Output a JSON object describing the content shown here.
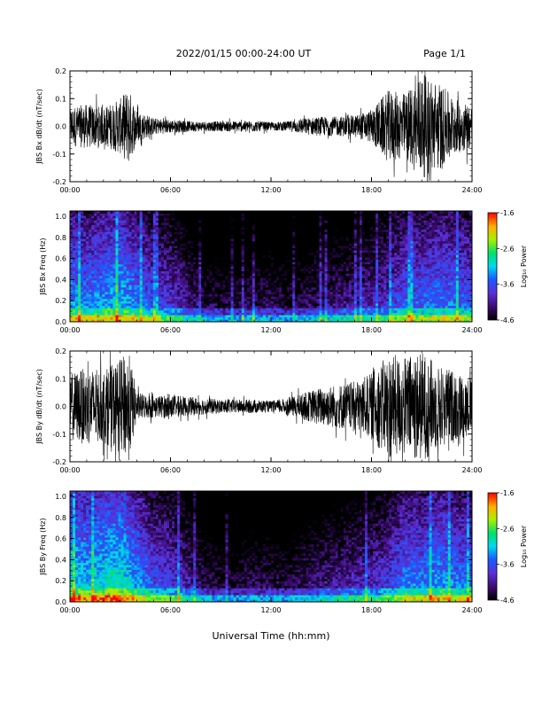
{
  "header": {
    "title": "2022/01/15  00:00-24:00 UT",
    "page": "Page 1/1"
  },
  "chart_data": [
    {
      "id": "bx-wave",
      "type": "line",
      "title": "",
      "xlabel": "",
      "ylabel": "JBS Bx dB/dt (nT/sec)",
      "xlim": [
        0,
        24
      ],
      "ylim": [
        -0.2,
        0.2
      ],
      "x_ticks": [
        "00:00",
        "06:00",
        "12:00",
        "18:00",
        "24:00"
      ],
      "y_ticks": [
        "-0.2",
        "-0.1",
        "0.0",
        "0.1",
        "0.2"
      ],
      "series": [
        {
          "x": [
            0,
            1,
            2,
            3,
            3.5,
            4,
            5,
            6,
            7,
            8,
            9,
            10,
            11,
            12,
            13,
            14,
            15,
            16,
            17,
            18,
            19,
            20,
            21,
            22,
            23,
            24
          ],
          "amplitude": [
            0.07,
            0.08,
            0.07,
            0.1,
            0.14,
            0.06,
            0.03,
            0.025,
            0.02,
            0.018,
            0.018,
            0.02,
            0.02,
            0.015,
            0.018,
            0.03,
            0.035,
            0.035,
            0.04,
            0.06,
            0.13,
            0.12,
            0.19,
            0.16,
            0.1,
            0.08
          ]
        }
      ]
    },
    {
      "id": "bx-spec",
      "type": "heatmap",
      "title": "",
      "xlabel": "",
      "ylabel": "JBS Bx Freq (Hz)",
      "xlim": [
        0,
        24
      ],
      "ylim": [
        0,
        1.05
      ],
      "x_ticks": [
        "00:00",
        "06:00",
        "12:00",
        "18:00",
        "24:00"
      ],
      "y_ticks": [
        "0.0",
        "0.2",
        "0.4",
        "0.6",
        "0.8",
        "1.0"
      ],
      "colorbar": {
        "label": "Log₁₀ Power",
        "range": [
          -4.6,
          -1.6
        ],
        "ticks": [
          "-1.6",
          "-2.6",
          "-3.6",
          "-4.6"
        ]
      },
      "activity_profile": [
        0.55,
        0.5,
        0.55,
        0.6,
        0.5,
        0.4,
        0.35,
        0.25,
        0.15,
        0.12,
        0.12,
        0.15,
        0.15,
        0.12,
        0.15,
        0.2,
        0.22,
        0.25,
        0.28,
        0.35,
        0.45,
        0.45,
        0.5,
        0.48,
        0.45
      ]
    },
    {
      "id": "by-wave",
      "type": "line",
      "title": "",
      "xlabel": "",
      "ylabel": "JBS By dB/dt (nT/sec)",
      "xlim": [
        0,
        24
      ],
      "ylim": [
        -0.2,
        0.2
      ],
      "x_ticks": [
        "00:00",
        "06:00",
        "12:00",
        "18:00",
        "24:00"
      ],
      "y_ticks": [
        "-0.2",
        "-0.1",
        "0.0",
        "0.1",
        "0.2"
      ],
      "series": [
        {
          "x": [
            0,
            1,
            2,
            3,
            3.5,
            4,
            5,
            6,
            7,
            8,
            9,
            10,
            11,
            12,
            13,
            14,
            15,
            16,
            17,
            18,
            19,
            20,
            21,
            22,
            23,
            24
          ],
          "amplitude": [
            0.12,
            0.14,
            0.13,
            0.17,
            0.2,
            0.05,
            0.04,
            0.04,
            0.035,
            0.03,
            0.025,
            0.025,
            0.025,
            0.02,
            0.03,
            0.05,
            0.07,
            0.08,
            0.09,
            0.12,
            0.19,
            0.18,
            0.2,
            0.15,
            0.13,
            0.1
          ]
        }
      ]
    },
    {
      "id": "by-spec",
      "type": "heatmap",
      "title": "",
      "xlabel": "Universal Time (hh:mm)",
      "ylabel": "JBS By Freq (Hz)",
      "xlim": [
        0,
        24
      ],
      "ylim": [
        0,
        1.05
      ],
      "x_ticks": [
        "00:00",
        "06:00",
        "12:00",
        "18:00",
        "24:00"
      ],
      "y_ticks": [
        "0.0",
        "0.2",
        "0.4",
        "0.6",
        "0.8",
        "1.0"
      ],
      "colorbar": {
        "label": "Log₁₀ Power",
        "range": [
          -4.6,
          -1.6
        ],
        "ticks": [
          "-1.6",
          "-2.6",
          "-3.6",
          "-4.6"
        ]
      },
      "activity_profile": [
        0.65,
        0.6,
        0.65,
        0.7,
        0.55,
        0.42,
        0.38,
        0.28,
        0.15,
        0.12,
        0.12,
        0.15,
        0.15,
        0.12,
        0.18,
        0.22,
        0.25,
        0.28,
        0.32,
        0.38,
        0.5,
        0.5,
        0.55,
        0.5,
        0.48
      ]
    }
  ]
}
